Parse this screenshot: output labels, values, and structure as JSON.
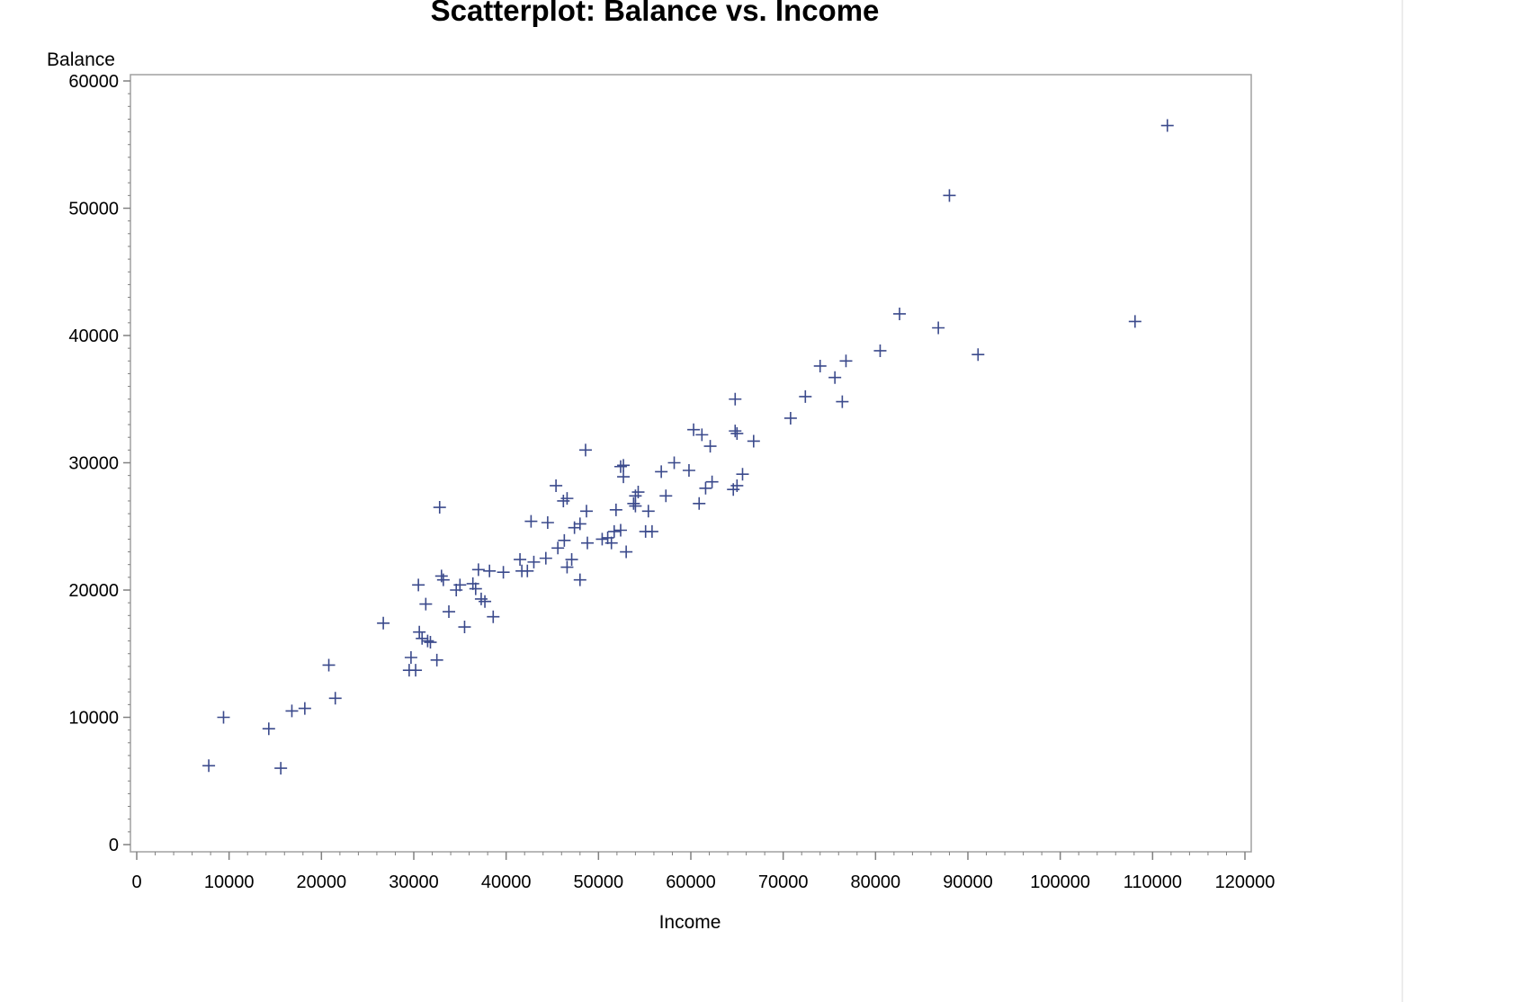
{
  "chart_data": {
    "type": "scatter",
    "title": "Scatterplot: Balance vs. Income",
    "xlabel": "Income",
    "ylabel": "Balance",
    "xlim": [
      0,
      120000
    ],
    "ylim": [
      0,
      60000
    ],
    "xticks": [
      0,
      10000,
      20000,
      30000,
      40000,
      50000,
      60000,
      70000,
      80000,
      90000,
      100000,
      110000,
      120000
    ],
    "yticks": [
      0,
      10000,
      20000,
      30000,
      40000,
      50000,
      60000
    ],
    "marker": "plus",
    "marker_color": "#3b4a8c",
    "grid": false,
    "points": [
      [
        7800,
        6200
      ],
      [
        9400,
        10000
      ],
      [
        14300,
        9100
      ],
      [
        15600,
        6000
      ],
      [
        16800,
        10500
      ],
      [
        18200,
        10700
      ],
      [
        20800,
        14100
      ],
      [
        21500,
        11500
      ],
      [
        26700,
        17400
      ],
      [
        29500,
        13700
      ],
      [
        29700,
        14700
      ],
      [
        30200,
        13700
      ],
      [
        30500,
        20400
      ],
      [
        30600,
        16700
      ],
      [
        30900,
        16200
      ],
      [
        31300,
        18900
      ],
      [
        31500,
        16000
      ],
      [
        31800,
        15900
      ],
      [
        32500,
        14500
      ],
      [
        32800,
        26500
      ],
      [
        33000,
        21100
      ],
      [
        33200,
        20800
      ],
      [
        33800,
        18300
      ],
      [
        34600,
        20000
      ],
      [
        35000,
        20400
      ],
      [
        35500,
        17100
      ],
      [
        36400,
        20500
      ],
      [
        36700,
        20100
      ],
      [
        37000,
        21600
      ],
      [
        37300,
        19300
      ],
      [
        37700,
        19100
      ],
      [
        38200,
        21500
      ],
      [
        38600,
        17900
      ],
      [
        39700,
        21400
      ],
      [
        41500,
        22400
      ],
      [
        41700,
        21500
      ],
      [
        42300,
        21500
      ],
      [
        42700,
        25400
      ],
      [
        43000,
        22200
      ],
      [
        44300,
        22500
      ],
      [
        44500,
        25300
      ],
      [
        45400,
        28200
      ],
      [
        45600,
        23300
      ],
      [
        46200,
        27000
      ],
      [
        46300,
        23900
      ],
      [
        46600,
        27200
      ],
      [
        46600,
        21800
      ],
      [
        47100,
        22400
      ],
      [
        47400,
        24900
      ],
      [
        48000,
        25200
      ],
      [
        48000,
        20800
      ],
      [
        48600,
        31000
      ],
      [
        48700,
        26200
      ],
      [
        48800,
        23700
      ],
      [
        50400,
        24000
      ],
      [
        51000,
        24100
      ],
      [
        51400,
        23700
      ],
      [
        51700,
        24600
      ],
      [
        51900,
        26300
      ],
      [
        52400,
        24700
      ],
      [
        52400,
        29700
      ],
      [
        52700,
        29800
      ],
      [
        52700,
        28900
      ],
      [
        53000,
        23000
      ],
      [
        53800,
        26800
      ],
      [
        54000,
        26600
      ],
      [
        54000,
        27400
      ],
      [
        54300,
        27700
      ],
      [
        55100,
        24600
      ],
      [
        55400,
        26200
      ],
      [
        55800,
        24600
      ],
      [
        56800,
        29300
      ],
      [
        57300,
        27400
      ],
      [
        58200,
        30000
      ],
      [
        59800,
        29400
      ],
      [
        60300,
        32600
      ],
      [
        60900,
        26800
      ],
      [
        61200,
        32200
      ],
      [
        61600,
        28000
      ],
      [
        62100,
        31300
      ],
      [
        62300,
        28500
      ],
      [
        64600,
        27900
      ],
      [
        64800,
        35000
      ],
      [
        64800,
        32500
      ],
      [
        65000,
        32300
      ],
      [
        65000,
        28200
      ],
      [
        65600,
        29100
      ],
      [
        66800,
        31700
      ],
      [
        70800,
        33500
      ],
      [
        72400,
        35200
      ],
      [
        74000,
        37600
      ],
      [
        75600,
        36700
      ],
      [
        76400,
        34800
      ],
      [
        76800,
        38000
      ],
      [
        80500,
        38800
      ],
      [
        82600,
        41700
      ],
      [
        86800,
        40600
      ],
      [
        88000,
        51000
      ],
      [
        91100,
        38500
      ],
      [
        108100,
        41100
      ],
      [
        111600,
        56500
      ]
    ]
  }
}
